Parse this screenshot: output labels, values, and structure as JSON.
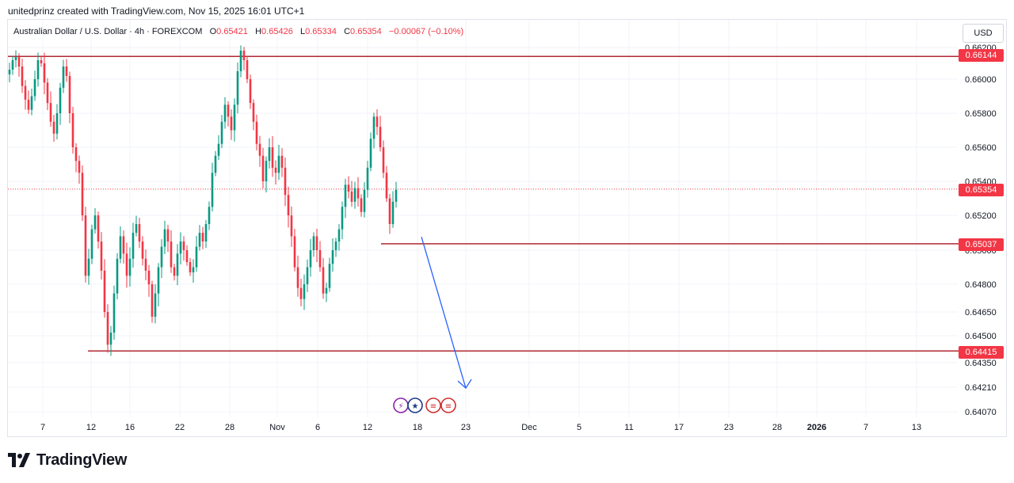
{
  "header": {
    "text": "unitedprinz created with TradingView.com, Nov 15, 2025 16:01 UTC+1"
  },
  "legend": {
    "symbol": "Australian Dollar / U.S. Dollar · 4h · FOREXCOM",
    "o_label": "O",
    "o_value": "0.65421",
    "h_label": "H",
    "h_value": "0.65426",
    "l_label": "L",
    "l_value": "0.65334",
    "c_label": "C",
    "c_value": "0.65354",
    "change": "−0.00067 (−0.10%)"
  },
  "currency": "USD",
  "logo_text": "TradingView",
  "colors": {
    "up": "#089981",
    "down": "#f23645",
    "level_line": "#b22833",
    "arrow": "#2962ff",
    "tag": "#f23645"
  },
  "chart_data": {
    "type": "candlestick",
    "symbol": "AUDUSD",
    "timeframe": "4h",
    "y_axis_ticks": [
      "0.66200",
      "0.66000",
      "0.65800",
      "0.65600",
      "0.65400",
      "0.65200",
      "0.65000",
      "0.64800",
      "0.64650",
      "0.64500",
      "0.64350",
      "0.64210",
      "0.64070"
    ],
    "x_axis_ticks": [
      "7",
      "12",
      "16",
      "22",
      "28",
      "Nov",
      "6",
      "12",
      "18",
      "23",
      "Dec",
      "5",
      "11",
      "17",
      "23",
      "28",
      "2026",
      "7",
      "13"
    ],
    "price_tags": {
      "upper_level": "0.66144",
      "last_price": "0.65354",
      "mid_level": "0.65037",
      "lower_level": "0.64415"
    },
    "horizontal_levels": [
      0.66144,
      0.65037,
      0.64415
    ],
    "last_price": 0.65354,
    "projection_arrow": {
      "from": 0.6504,
      "to": 0.6425,
      "direction": "down"
    },
    "price_path": [
      0.6606,
      0.6612,
      0.6614,
      0.6608,
      0.6596,
      0.6588,
      0.6582,
      0.659,
      0.66,
      0.6612,
      0.661,
      0.6598,
      0.6586,
      0.6575,
      0.6568,
      0.658,
      0.6595,
      0.6608,
      0.6602,
      0.658,
      0.656,
      0.6552,
      0.6545,
      0.652,
      0.6485,
      0.6495,
      0.6512,
      0.652,
      0.6505,
      0.6488,
      0.6465,
      0.6445,
      0.6452,
      0.6475,
      0.6495,
      0.6508,
      0.6498,
      0.6485,
      0.6495,
      0.651,
      0.6515,
      0.6505,
      0.6495,
      0.6488,
      0.648,
      0.6462,
      0.6475,
      0.649,
      0.6502,
      0.6512,
      0.6505,
      0.649,
      0.6485,
      0.6498,
      0.6505,
      0.65,
      0.6493,
      0.6487,
      0.649,
      0.6502,
      0.651,
      0.6505,
      0.6515,
      0.6525,
      0.6545,
      0.6555,
      0.6562,
      0.6575,
      0.6585,
      0.6578,
      0.657,
      0.6585,
      0.6605,
      0.6618,
      0.6612,
      0.66,
      0.6586,
      0.6575,
      0.6562,
      0.6555,
      0.654,
      0.6552,
      0.656,
      0.6548,
      0.6545,
      0.6555,
      0.6548,
      0.6532,
      0.652,
      0.6508,
      0.649,
      0.6478,
      0.6472,
      0.648,
      0.649,
      0.65,
      0.6508,
      0.65,
      0.649,
      0.6475,
      0.6478,
      0.6492,
      0.65,
      0.6505,
      0.6512,
      0.6525,
      0.6538,
      0.6534,
      0.6528,
      0.6536,
      0.653,
      0.6522,
      0.6535,
      0.6548,
      0.6565,
      0.6578,
      0.6572,
      0.656,
      0.6545,
      0.653,
      0.6515,
      0.6528,
      0.6535
    ]
  }
}
